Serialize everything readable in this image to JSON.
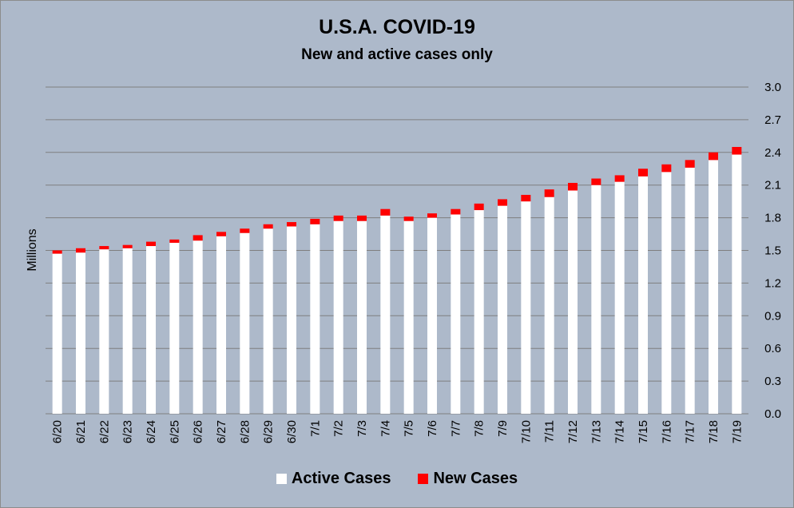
{
  "chart_data": {
    "type": "bar",
    "stacked": true,
    "title": "U.S.A. COVID-19",
    "subtitle": "New and active cases only",
    "ylabel": "Millions",
    "xlabel": "",
    "ylim": [
      0,
      3.0
    ],
    "yticks": [
      "0.0",
      "0.3",
      "0.6",
      "0.9",
      "1.2",
      "1.5",
      "1.8",
      "2.1",
      "2.4",
      "2.7",
      "3.0"
    ],
    "y_axis_side": "right",
    "grid": true,
    "legend_position": "bottom",
    "categories": [
      "6/20",
      "6/21",
      "6/22",
      "6/23",
      "6/24",
      "6/25",
      "6/26",
      "6/27",
      "6/28",
      "6/29",
      "6/30",
      "7/1",
      "7/2",
      "7/3",
      "7/4",
      "7/5",
      "7/6",
      "7/7",
      "7/8",
      "7/9",
      "7/10",
      "7/11",
      "7/12",
      "7/13",
      "7/14",
      "7/15",
      "7/16",
      "7/17",
      "7/18",
      "7/19"
    ],
    "series": [
      {
        "name": "Active Cases",
        "color": "#ffffff",
        "values": [
          1.47,
          1.48,
          1.51,
          1.52,
          1.54,
          1.57,
          1.59,
          1.63,
          1.66,
          1.7,
          1.72,
          1.74,
          1.77,
          1.77,
          1.82,
          1.77,
          1.8,
          1.83,
          1.87,
          1.91,
          1.95,
          1.99,
          2.05,
          2.1,
          2.13,
          2.18,
          2.22,
          2.26,
          2.33,
          2.38
        ]
      },
      {
        "name": "New Cases",
        "color": "#ff0000",
        "values": [
          0.03,
          0.04,
          0.03,
          0.03,
          0.04,
          0.03,
          0.05,
          0.04,
          0.04,
          0.04,
          0.04,
          0.05,
          0.05,
          0.05,
          0.06,
          0.04,
          0.04,
          0.05,
          0.06,
          0.06,
          0.06,
          0.07,
          0.07,
          0.06,
          0.06,
          0.07,
          0.07,
          0.07,
          0.07,
          0.07
        ]
      }
    ]
  }
}
